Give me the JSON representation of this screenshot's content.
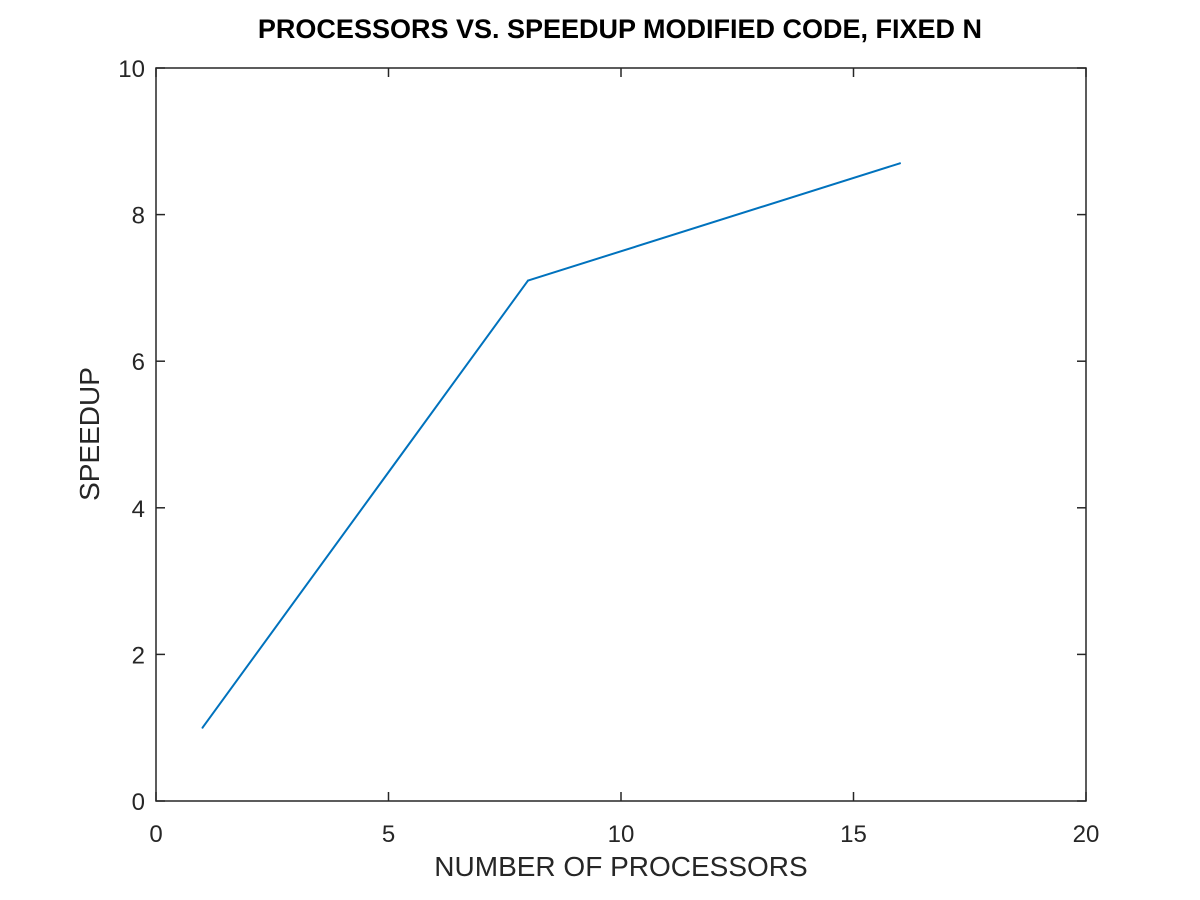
{
  "chart_data": {
    "type": "line",
    "title": "PROCESSORS VS. SPEEDUP MODIFIED CODE, FIXED N",
    "xlabel": "NUMBER OF PROCESSORS",
    "ylabel": "SPEEDUP",
    "xlim": [
      0,
      20
    ],
    "ylim": [
      0,
      10
    ],
    "xticks": [
      0,
      5,
      10,
      15,
      20
    ],
    "yticks": [
      0,
      2,
      4,
      6,
      8,
      10
    ],
    "grid": false,
    "series": [
      {
        "color": "#0072BD",
        "x": [
          1,
          8,
          16
        ],
        "y": [
          1.0,
          7.1,
          8.7
        ]
      }
    ]
  }
}
